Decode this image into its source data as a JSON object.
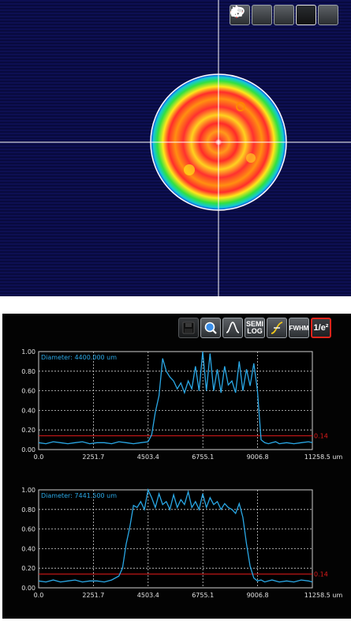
{
  "beam_toolbar": [
    {
      "name": "crosshair-target-button",
      "icon": "crosshair-icon"
    },
    {
      "name": "snapshot-button",
      "icon": "camera-icon"
    },
    {
      "name": "rotate-button",
      "icon": "rotate-icon"
    },
    {
      "name": "ellipse-fit-button",
      "icon": "ellipse-icon",
      "active": true
    },
    {
      "name": "pointer-button",
      "icon": "cursor-arrow-icon"
    }
  ],
  "profile_toolbar": {
    "semilog_label": "SEMI\nLOG",
    "fwhm_label": "FWHM",
    "clip_label": "1/e²"
  },
  "colors": {
    "profile_line": "#2aa8e6",
    "clip_line": "#e01b1b",
    "grid": "#d0d0d0",
    "beam_background": "#0a0b45"
  },
  "chart_data": [
    {
      "type": "line",
      "annotation": "Diameter: 4400.000 um",
      "clip_level_label": "0.14",
      "clip_level": 0.14,
      "xlim": [
        0,
        11258.5
      ],
      "ylim": [
        0,
        1.0
      ],
      "x_tick_labels": [
        "0.0",
        "2251.7",
        "4503.4",
        "6755.1",
        "9006.8",
        "11258.5 um"
      ],
      "y_tick_labels": [
        "0.00",
        "0.20",
        "0.40",
        "0.60",
        "0.80",
        "1.00"
      ],
      "grid": true,
      "series": [
        {
          "x": [
            0,
            300,
            600,
            900,
            1200,
            1500,
            1800,
            2100,
            2400,
            2700,
            3000,
            3300,
            3600,
            3900,
            4200,
            4500,
            4650,
            4800,
            4950,
            5100,
            5250,
            5400,
            5550,
            5700,
            5850,
            6000,
            6150,
            6300,
            6450,
            6600,
            6750,
            6900,
            7050,
            7200,
            7350,
            7500,
            7650,
            7800,
            7950,
            8100,
            8250,
            8400,
            8550,
            8700,
            8850,
            9000,
            9150,
            9300,
            9450,
            9600,
            9750,
            9900,
            10200,
            10500,
            10800,
            11100,
            11258.5
          ],
          "y": [
            0.07,
            0.06,
            0.08,
            0.07,
            0.06,
            0.07,
            0.08,
            0.06,
            0.07,
            0.07,
            0.06,
            0.08,
            0.07,
            0.06,
            0.07,
            0.08,
            0.15,
            0.38,
            0.55,
            0.93,
            0.8,
            0.74,
            0.7,
            0.62,
            0.68,
            0.58,
            0.7,
            0.62,
            0.85,
            0.6,
            1.0,
            0.6,
            0.98,
            0.6,
            0.82,
            0.58,
            0.85,
            0.66,
            0.7,
            0.58,
            0.9,
            0.6,
            0.82,
            0.65,
            0.88,
            0.6,
            0.1,
            0.07,
            0.06,
            0.07,
            0.08,
            0.06,
            0.07,
            0.06,
            0.07,
            0.08,
            0.07
          ]
        }
      ]
    },
    {
      "type": "line",
      "annotation": "Diameter: 7441.500 um",
      "clip_level_label": "0.14",
      "clip_level": 0.14,
      "xlim": [
        0,
        11258.5
      ],
      "ylim": [
        0,
        1.0
      ],
      "x_tick_labels": [
        "0.0",
        "2251.7",
        "4503.4",
        "6755.1",
        "9006.8",
        "11258.5 um"
      ],
      "y_tick_labels": [
        "0.00",
        "0.20",
        "0.40",
        "0.60",
        "0.80",
        "1.00"
      ],
      "grid": true,
      "series": [
        {
          "x": [
            0,
            300,
            600,
            900,
            1200,
            1500,
            1800,
            2100,
            2400,
            2700,
            3000,
            3300,
            3450,
            3600,
            3750,
            3900,
            4050,
            4200,
            4350,
            4500,
            4650,
            4800,
            4950,
            5100,
            5250,
            5400,
            5550,
            5700,
            5850,
            6000,
            6150,
            6300,
            6450,
            6600,
            6750,
            6900,
            7050,
            7200,
            7350,
            7500,
            7650,
            7800,
            7950,
            8100,
            8250,
            8400,
            8550,
            8700,
            8850,
            9000,
            9150,
            9300,
            9450,
            9600,
            9900,
            10200,
            10500,
            10800,
            11100,
            11258.5
          ],
          "y": [
            0.07,
            0.06,
            0.08,
            0.06,
            0.07,
            0.08,
            0.06,
            0.07,
            0.07,
            0.06,
            0.08,
            0.12,
            0.2,
            0.45,
            0.62,
            0.84,
            0.82,
            0.88,
            0.8,
            1.0,
            0.92,
            0.82,
            0.96,
            0.85,
            0.88,
            0.8,
            0.95,
            0.82,
            0.9,
            0.85,
            0.98,
            0.82,
            0.88,
            0.8,
            0.96,
            0.82,
            0.92,
            0.85,
            0.88,
            0.8,
            0.86,
            0.82,
            0.8,
            0.76,
            0.86,
            0.72,
            0.45,
            0.22,
            0.1,
            0.07,
            0.08,
            0.06,
            0.07,
            0.08,
            0.06,
            0.07,
            0.06,
            0.08,
            0.07,
            0.06
          ]
        }
      ]
    }
  ]
}
